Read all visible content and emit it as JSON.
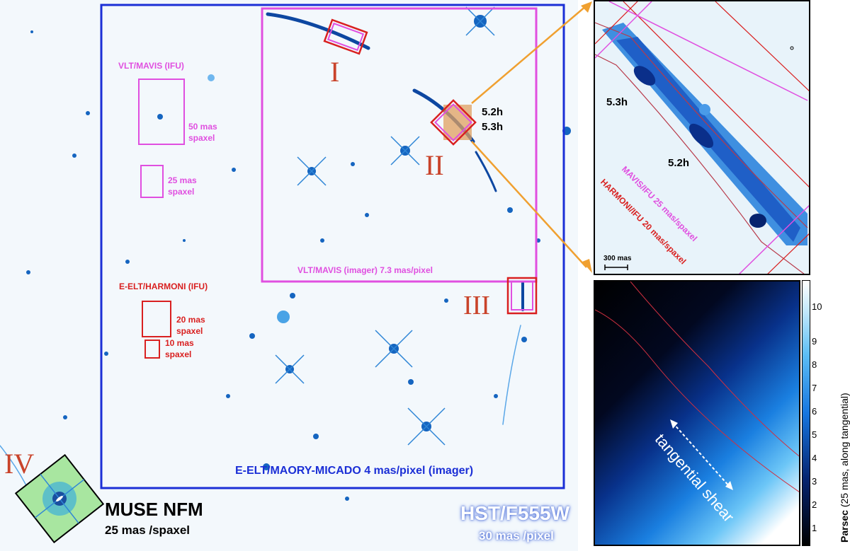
{
  "labels": {
    "region_i": "I",
    "region_ii": "II",
    "region_iii": "III",
    "region_iv": "IV",
    "time_52": "5.2h",
    "time_53": "5.3h",
    "mavis_ifu_title": "VLT/MAVIS  (IFU)",
    "mavis_50": "50 mas",
    "mavis_50_b": "spaxel",
    "mavis_25": "25 mas",
    "mavis_25_b": "spaxel",
    "mavis_imager": "VLT/MAVIS  (imager) 7.3 mas/pixel",
    "harmoni_title": "E-ELT/HARMONI  (IFU)",
    "harmoni_20": "20 mas",
    "harmoni_20_b": "spaxel",
    "harmoni_10": "10 mas",
    "harmoni_10_b": "spaxel",
    "micado": "E-ELT/MAORY-MICADO  4 mas/pixel (imager)",
    "muse_title": "MUSE  NFM",
    "muse_sub": "25 mas /spaxel",
    "hst_title": "HST/F555W",
    "hst_sub": "30 mas /pixel"
  },
  "zoom": {
    "label_53": "5.3h",
    "label_52": "5.2h",
    "mavis_ifu": "MAVIS/IFU 25 mas/spaxel",
    "harmoni_ifu": "HARMONI/IFU 20 mas/spaxel",
    "scale": "300 mas"
  },
  "shear": {
    "annotation": "tangential shear",
    "colorbar_label_bold": "Parsec",
    "colorbar_label_rest": " (25 mas, along tangential)",
    "ticks": [
      "1",
      "2",
      "3",
      "4",
      "5",
      "6",
      "7",
      "8",
      "9",
      "10"
    ]
  },
  "colors": {
    "micado_blue": "#1b2fd6",
    "mavis_magenta": "#e04fe0",
    "harmoni_red": "#d92020",
    "roman_numeral": "#c9432a",
    "accent_orange": "#f0a030"
  }
}
